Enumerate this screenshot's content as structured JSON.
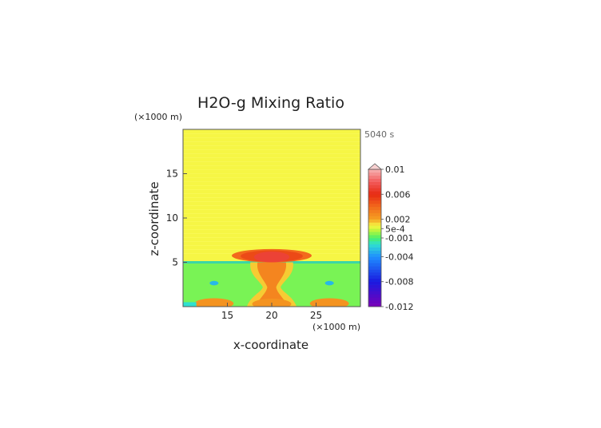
{
  "chart_data": {
    "type": "heatmap",
    "title": "H2O-g Mixing Ratio",
    "xlabel": "x-coordinate",
    "ylabel": "z-coordinate",
    "x_unit": "(×1000 m)",
    "y_unit": "(×1000 m)",
    "time_label": "5040 s",
    "xlim": [
      10,
      30
    ],
    "ylim": [
      0,
      20
    ],
    "x_ticks": [
      {
        "value": 15,
        "label": "15"
      },
      {
        "value": 20,
        "label": "20"
      },
      {
        "value": 25,
        "label": "25"
      }
    ],
    "y_ticks": [
      {
        "value": 5,
        "label": "5"
      },
      {
        "value": 10,
        "label": "10"
      },
      {
        "value": 15,
        "label": "15"
      }
    ],
    "colorbar": {
      "min": -0.012,
      "max": 0.01,
      "extend": "max",
      "labels": [
        {
          "value": 0.01,
          "label": "0.01"
        },
        {
          "value": 0.006,
          "label": "0.006"
        },
        {
          "value": 0.002,
          "label": "0.002"
        },
        {
          "value": 0.0005,
          "label": "5e-4"
        },
        {
          "value": -0.001,
          "label": "-0.001"
        },
        {
          "value": -0.004,
          "label": "-0.004"
        },
        {
          "value": -0.008,
          "label": "-0.008"
        },
        {
          "value": -0.012,
          "label": "-0.012"
        }
      ]
    },
    "regions": [
      {
        "name": "upper-background",
        "value": 0.001,
        "x": [
          10,
          30
        ],
        "z": [
          5,
          20
        ]
      },
      {
        "name": "lower-layer",
        "value": -0.0005,
        "x": [
          10,
          30
        ],
        "z": [
          0,
          5
        ]
      },
      {
        "name": "cloud-head",
        "value": 0.004,
        "x": [
          15.5,
          24.5
        ],
        "z": [
          5,
          6.5
        ]
      },
      {
        "name": "cloud-core",
        "value": 0.007,
        "x": [
          18,
          22
        ],
        "z": [
          5,
          6.2
        ]
      },
      {
        "name": "updraft-column",
        "value": 0.003,
        "x": [
          17.5,
          22.5
        ],
        "z": [
          0,
          5
        ]
      },
      {
        "name": "left-dry-pocket",
        "value": -0.003,
        "x": [
          13,
          14
        ],
        "z": [
          2.4,
          2.9
        ]
      },
      {
        "name": "right-dry-pocket",
        "value": -0.003,
        "x": [
          26,
          27
        ],
        "z": [
          2.4,
          2.9
        ]
      }
    ]
  }
}
